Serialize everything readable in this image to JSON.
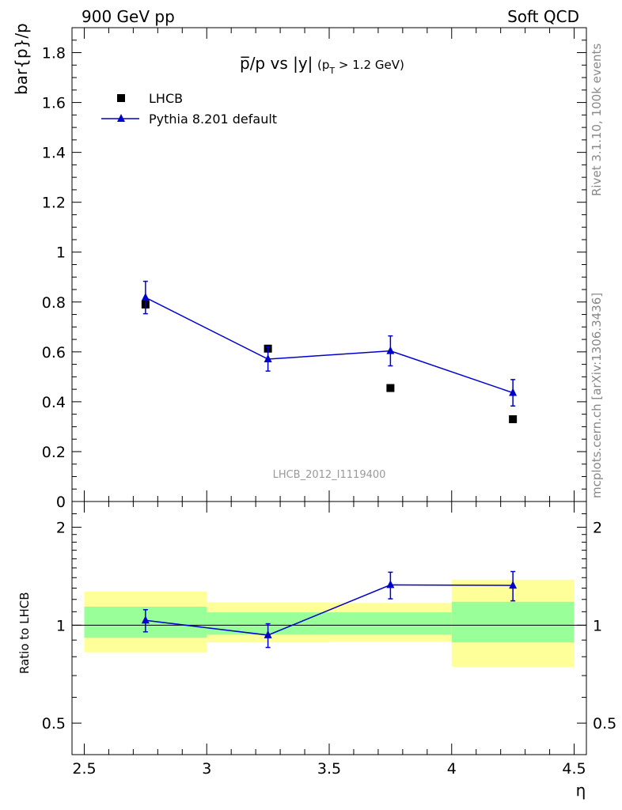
{
  "header": {
    "left": "900 GeV pp",
    "right": "Soft QCD"
  },
  "side_text": {
    "rivet": "Rivet 3.1.10,  100k events",
    "mcplots": "mcplots.cern.ch [arXiv:1306.3436]"
  },
  "main": {
    "title_main": "p̅/p vs |y|",
    "title_cut": "(p",
    "title_sub": "T",
    "title_cut_end": " > 1.2 GeV)",
    "ylabel": "bar{p}/p",
    "analysis_id": "LHCB_2012_I1119400",
    "yticks": [
      "0",
      "0.2",
      "0.4",
      "0.6",
      "0.8",
      "1",
      "1.2",
      "1.4",
      "1.6",
      "1.8"
    ],
    "legend": {
      "data_label": "LHCB",
      "mc_label": "Pythia 8.201 default"
    }
  },
  "ratio": {
    "ylabel": "Ratio to LHCB",
    "yticks": [
      "0.5",
      "1",
      "2"
    ]
  },
  "xaxis": {
    "label": "η",
    "ticks": [
      "2.5",
      "3",
      "3.5",
      "4",
      "4.5"
    ]
  },
  "colors": {
    "mc": "#0000cc",
    "data": "#000000",
    "band_inner": "#99ff99",
    "band_outer": "#ffff99",
    "analysis_text": "#999999",
    "side_text": "#888888"
  },
  "chart_data": [
    {
      "type": "scatter",
      "title": "p̅/p vs |y| (pT > 1.2 GeV)",
      "xlabel": "η",
      "ylabel": "bar{p}/p",
      "xlim": [
        2.45,
        4.55
      ],
      "ylim": [
        0,
        1.9
      ],
      "legend_position": "top-left",
      "series": [
        {
          "name": "LHCB",
          "marker": "square",
          "x": [
            2.75,
            3.25,
            3.75,
            4.25
          ],
          "xerr": [
            0.25,
            0.25,
            0.25,
            0.25
          ],
          "y": [
            0.79,
            0.613,
            0.455,
            0.33
          ]
        },
        {
          "name": "Pythia 8.201 default",
          "marker": "triangle",
          "x": [
            2.75,
            3.25,
            3.75,
            4.25
          ],
          "y": [
            0.818,
            0.571,
            0.604,
            0.436
          ],
          "yerr": [
            0.065,
            0.048,
            0.06,
            0.053
          ]
        }
      ]
    },
    {
      "type": "scatter",
      "ylabel": "Ratio to LHCB",
      "xlabel": "η",
      "xlim": [
        2.45,
        4.55
      ],
      "ylim": [
        0.4,
        2.4
      ],
      "yscale": "log",
      "reference_line": 1,
      "bands": [
        {
          "xlo": 2.5,
          "xhi": 3.0,
          "inner": [
            0.915,
            1.14
          ],
          "outer": [
            0.825,
            1.27
          ]
        },
        {
          "xlo": 3.0,
          "xhi": 3.5,
          "inner": [
            0.935,
            1.095
          ],
          "outer": [
            0.885,
            1.175
          ]
        },
        {
          "xlo": 3.5,
          "xhi": 4.0,
          "inner": [
            0.935,
            1.095
          ],
          "outer": [
            0.89,
            1.17
          ]
        },
        {
          "xlo": 4.0,
          "xhi": 4.5,
          "inner": [
            0.885,
            1.18
          ],
          "outer": [
            0.745,
            1.38
          ]
        }
      ],
      "series": [
        {
          "name": "Pythia 8.201 default",
          "x": [
            2.75,
            3.25,
            3.75,
            4.25
          ],
          "y": [
            1.035,
            0.932,
            1.33,
            1.325
          ],
          "yerr_lo": [
            0.081,
            0.078,
            0.125,
            0.137
          ],
          "yerr_hi": [
            0.081,
            0.078,
            0.125,
            0.137
          ]
        }
      ]
    }
  ]
}
